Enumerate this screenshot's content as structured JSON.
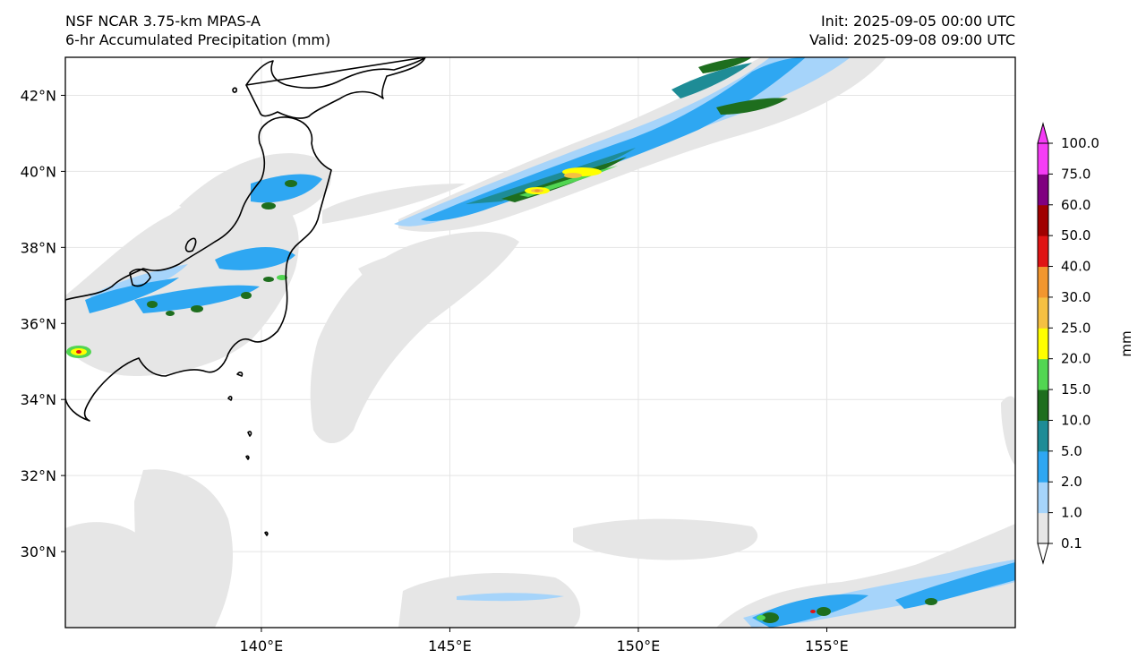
{
  "header": {
    "model": "NSF NCAR 3.75-km MPAS-A",
    "field": "6-hr Accumulated Precipitation (mm)",
    "init": "Init: 2025-09-05 00:00 UTC",
    "valid": "Valid: 2025-09-08 09:00 UTC"
  },
  "map": {
    "lon_range": [
      134.8,
      160.0
    ],
    "lat_range": [
      28.0,
      43.0
    ],
    "lon_ticks": [
      140,
      145,
      150,
      155
    ],
    "lon_tick_labels": [
      "140°E",
      "145°E",
      "150°E",
      "155°E"
    ],
    "lat_ticks": [
      30,
      32,
      34,
      36,
      38,
      40,
      42
    ],
    "lat_tick_labels": [
      "30°N",
      "32°N",
      "34°N",
      "36°N",
      "38°N",
      "40°N",
      "42°N"
    ],
    "gridlines": true
  },
  "colorbar": {
    "unit_label": "mm",
    "levels": [
      "0.1",
      "1.0",
      "2.0",
      "5.0",
      "10.0",
      "15.0",
      "20.0",
      "25.0",
      "30.0",
      "40.0",
      "50.0",
      "60.0",
      "75.0",
      "100.0"
    ],
    "colors": [
      "#e6e6e6",
      "#a6d4fa",
      "#2ea7f2",
      "#1e8c96",
      "#1e6e1e",
      "#52d652",
      "#ffff00",
      "#f5c042",
      "#f2962e",
      "#e01414",
      "#a00000",
      "#800080",
      "#f53cf5"
    ]
  }
}
